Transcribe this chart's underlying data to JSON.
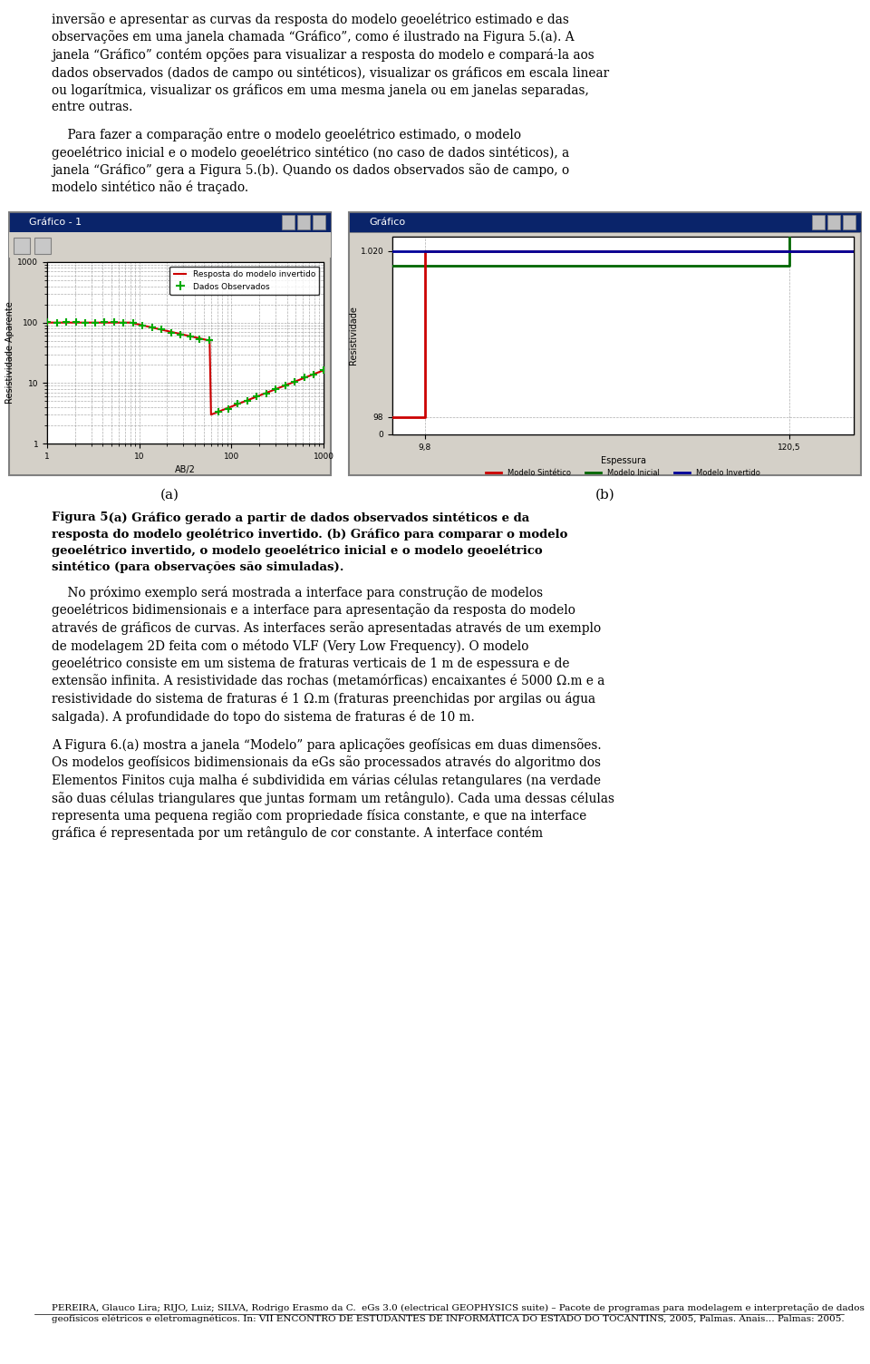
{
  "page_bg": "#ffffff",
  "text_color": "#000000",
  "paragraphs": [
    "inversão e apresentar as curvas da resposta do modelo geoelétrico estimado e das",
    "observações em uma janela chamada “Gráfico”, como é ilustrado na Figura 5.(a). A",
    "janela “Gráfico” contém opções para visualizar a resposta do modelo e compará-la aos",
    "dados observados (dados de campo ou sintéticos), visualizar os gráficos em escala linear",
    "ou logarítmica, visualizar os gráficos em uma mesma janela ou em janelas separadas,",
    "entre outras."
  ],
  "paragraph2": [
    "    Para fazer a comparação entre o modelo geoelétrico estimado, o modelo",
    "geoelétrico inicial e o modelo geoelétrico sintético (no caso de dados sintéticos), a",
    "janela “Gráfico” gera a Figura 5.(b). Quando os dados observados são de campo, o",
    "modelo sintético não é traçado."
  ],
  "caption_bold": "Figura 5.",
  "caption_a": " (a) Gráfico gerado a partir de dados observados sintéticos e da",
  "caption_line2": "resposta do modelo geolétrico invertido.",
  "caption_b": " (b) Gráfico para comparar o modelo",
  "caption_line3": "geoelétrico invertido, o modelo geoelétrico inicial e o modelo geoelétrico",
  "caption_line4": "sintético (para observações são simuladas).",
  "label_a": "(a)",
  "label_b": "(b)",
  "win1_title": "Gráfico - 1",
  "win2_title": "Gráfico",
  "win1_bg": "#d4d0c8",
  "win2_bg": "#d4d0c8",
  "plot_bg": "#d4d0c8",
  "inner_bg": "#ffffff",
  "win1_ylabel": "Resistividade Aparente",
  "win1_xlabel": "AB/2",
  "win2_ylabel": "Resistividade",
  "win2_xlabel": "Espessura",
  "win1_legend1": "Resposta do modelo invertido",
  "win1_legend2": "Dados Observados",
  "win2_legend1": "Modelo Sintético",
  "win2_legend2": "Modelo Inicial",
  "win2_legend3": "Modelo Invertido",
  "win1_line_color": "#cc0000",
  "win1_marker_color": "#00aa00",
  "win2_red": "#cc0000",
  "win2_green": "#006600",
  "win2_blue": "#000099",
  "paragraph3_lines": [
    "    No próximo exemplo será mostrada a interface para construção de modelos",
    "geoelétricos bidimensionais e a interface para apresentação da resposta do modelo",
    "através de gráficos de curvas. As interfaces serão apresentadas através de um exemplo",
    "de modelagem 2D feita com o método VLF (Very Low Frequency). O modelo",
    "geoelétrico consiste em um sistema de fraturas verticais de 1 m de espessura e de",
    "extensão infinita. A resistividade das rochas (metamórficas) encaixantes é 5000 Ω.m e a",
    "resistividade do sistema de fraturas é 1 Ω.m (fraturas preenchidas por argilas ou água",
    "salgada). A profundidade do topo do sistema de fraturas é de 10 m."
  ],
  "paragraph4_lines": [
    "A Figura 6.(a) mostra a janela “Modelo” para aplicações geofísicas em duas dimensões.",
    "Os modelos geofísicos bidimensionais da eGs são processados através do algoritmo dos",
    "Elementos Finitos cuja malha é subdividida em várias células retangulares (na verdade",
    "são duas células triangulares que juntas formam um retângulo). Cada uma dessas células",
    "representa uma pequena região com propriedade física constante, e que na interface",
    "gráfica é representada por um retângulo de cor constante. A interface contém"
  ],
  "footer": "PEREIRA, Glauco Lira; RIJO, Luiz; SILVA, Rodrigo Erasmo da C.  eGs 3.0 (electrical GEOPHYSICS suite) – Pacote de programas para modelagem e interpretação de dados geofísicos elétricos e eletromagnéticos. In: VII ENCONTRO DE ESTUDANTES DE INFORMÁTICA DO ESTADO DO TOCANTINS, 2005, Palmas. Anais… Palmas: 2005."
}
